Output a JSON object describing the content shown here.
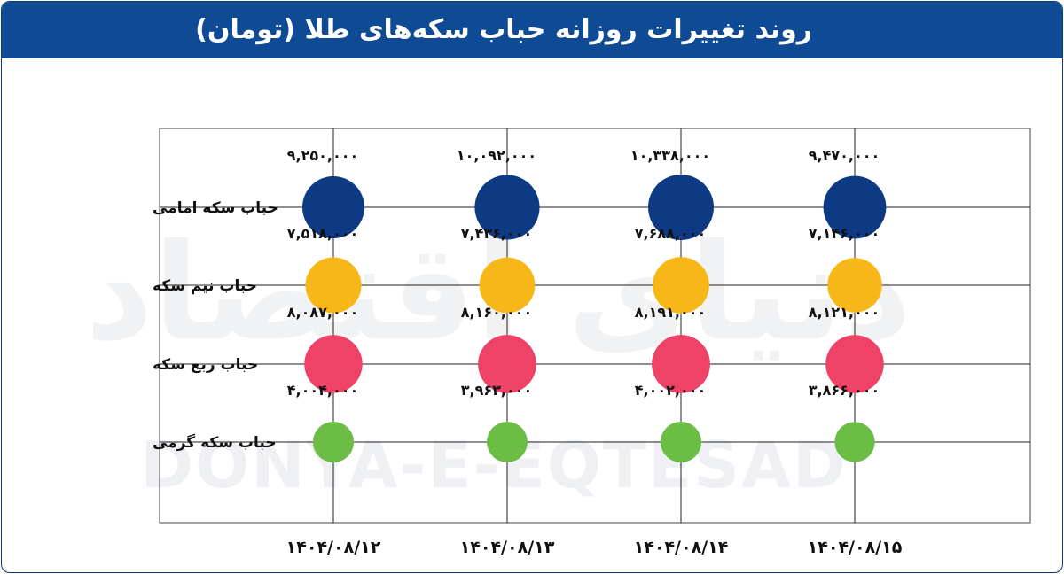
{
  "chart_data": {
    "type": "scatter",
    "title": "روند تغییرات روزانه حباب سکه‌های طلا (تومان)",
    "categories": [
      "۱۴۰۴/۰۸/۱۲",
      "۱۴۰۴/۰۸/۱۳",
      "۱۴۰۴/۰۸/۱۴",
      "۱۴۰۴/۰۸/۱۵"
    ],
    "rows": [
      "حباب سکه امامی",
      "حباب نیم سکه",
      "حباب ربع سکه",
      "حباب سکه گرمی"
    ],
    "series": [
      {
        "name": "حباب سکه امامی",
        "color": "#0e3a84",
        "values": [
          9250000,
          10092000,
          10338000,
          9470000
        ],
        "labels": [
          "۹,۲۵۰,۰۰۰",
          "۱۰,۰۹۲,۰۰۰",
          "۱۰,۳۳۸,۰۰۰",
          "۹,۴۷۰,۰۰۰"
        ]
      },
      {
        "name": "حباب نیم سکه",
        "color": "#f8b719",
        "values": [
          7518000,
          7436000,
          7688000,
          7146000
        ],
        "labels": [
          "۷,۵۱۸,۰۰۰",
          "۷,۴۳۶,۰۰۰",
          "۷,۶۸۸,۰۰۰",
          "۷,۱۴۶,۰۰۰"
        ]
      },
      {
        "name": "حباب ربع سکه",
        "color": "#ee4266",
        "values": [
          8087000,
          8160000,
          8191000,
          8121000
        ],
        "labels": [
          "۸,۰۸۷,۰۰۰",
          "۸,۱۶۰,۰۰۰",
          "۸,۱۹۱,۰۰۰",
          "۸,۱۲۱,۰۰۰"
        ]
      },
      {
        "name": "حباب سکه گرمی",
        "color": "#6cbd45",
        "values": [
          4004000,
          3963000,
          4002000,
          3866000
        ],
        "labels": [
          "۴,۰۰۴,۰۰۰",
          "۳,۹۶۳,۰۰۰",
          "۴,۰۰۲,۰۰۰",
          "۳,۸۶۶,۰۰۰"
        ]
      }
    ],
    "grid": true,
    "legend": "none"
  },
  "watermark": {
    "latin": "DONYA-E-EQTESAD",
    "persian": "دنیای اقتصاد"
  }
}
